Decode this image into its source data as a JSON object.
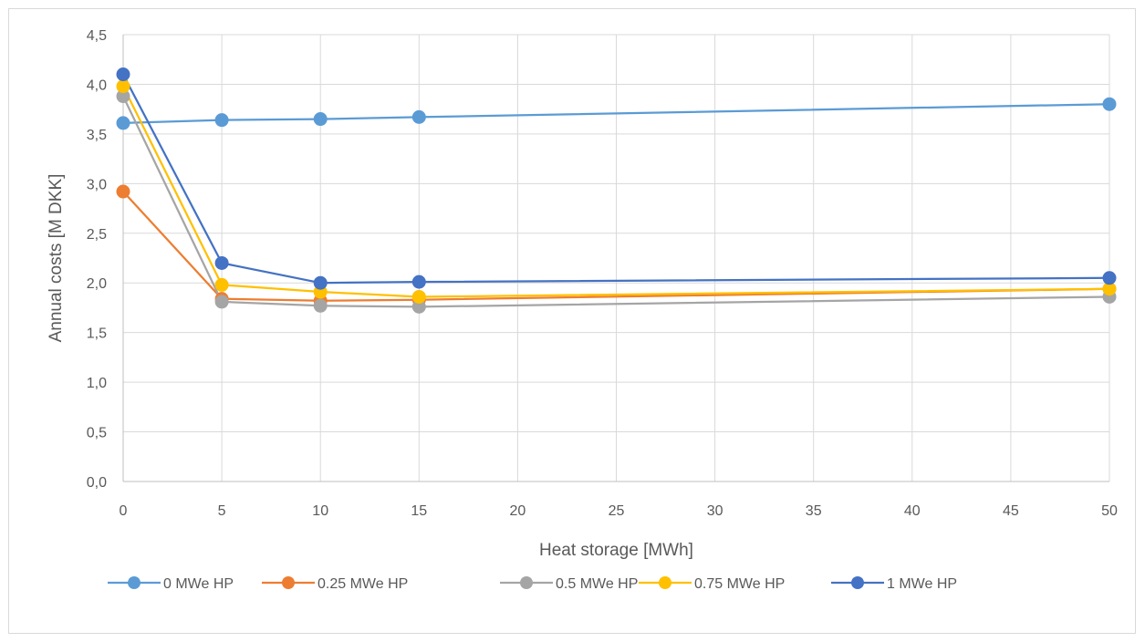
{
  "chart_data": {
    "type": "line",
    "title": "",
    "xlabel": "Heat storage [MWh]",
    "ylabel": "Annual costs [M DKK]",
    "xlim": [
      0,
      50
    ],
    "ylim": [
      0,
      4.5
    ],
    "x_ticks": [
      "0",
      "5",
      "10",
      "15",
      "20",
      "25",
      "30",
      "35",
      "40",
      "45",
      "50"
    ],
    "y_ticks": [
      "0,0",
      "0,5",
      "1,0",
      "1,5",
      "2,0",
      "2,5",
      "3,0",
      "3,5",
      "4,0",
      "4,5"
    ],
    "grid": true,
    "legend_position": "bottom",
    "x": [
      0,
      5,
      10,
      15,
      50
    ],
    "series": [
      {
        "name": "0 MWe HP",
        "color": "#5b9bd5",
        "values": [
          3.61,
          3.64,
          3.65,
          3.67,
          3.8
        ]
      },
      {
        "name": "0.25 MWe HP",
        "color": "#ed7d31",
        "values": [
          2.92,
          1.84,
          1.82,
          1.83,
          1.94
        ]
      },
      {
        "name": "0.5 MWe HP",
        "color": "#a5a5a5",
        "values": [
          3.88,
          1.81,
          1.77,
          1.76,
          1.86
        ]
      },
      {
        "name": "0.75 MWe HP",
        "color": "#ffc000",
        "values": [
          3.98,
          1.98,
          1.91,
          1.86,
          1.94
        ]
      },
      {
        "name": "1 MWe HP",
        "color": "#4472c4",
        "values": [
          4.1,
          2.2,
          2.0,
          2.01,
          2.05
        ]
      }
    ]
  }
}
